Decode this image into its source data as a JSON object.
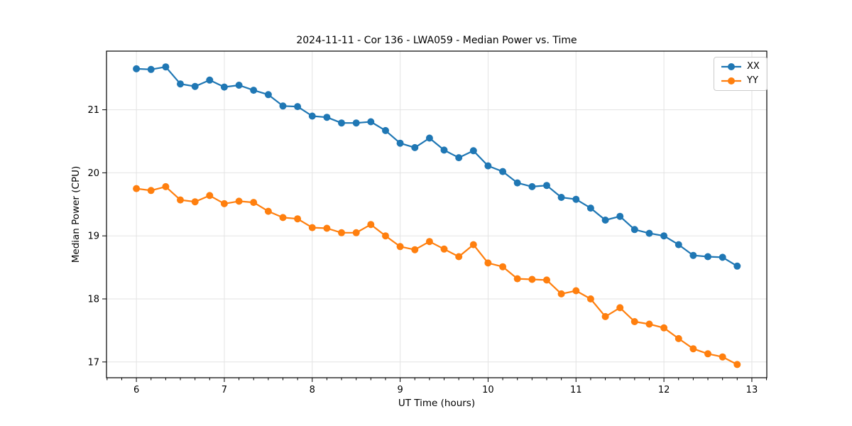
{
  "chart_data": {
    "type": "line",
    "title": "2024-11-11 - Cor 136 - LWA059 - Median Power vs. Time",
    "xlabel": "UT Time (hours)",
    "ylabel": "Median Power (CPU)",
    "xlim": [
      5.66,
      13.17
    ],
    "ylim": [
      16.75,
      21.93
    ],
    "x_ticks": [
      6,
      7,
      8,
      9,
      10,
      11,
      12,
      13
    ],
    "y_ticks": [
      17,
      18,
      19,
      20,
      21
    ],
    "x_minor_per_unit": 6,
    "grid": true,
    "legend_position": "upper right",
    "colors": {
      "XX": "#1f77b4",
      "YY": "#ff7f0e",
      "grid": "#e3e3e3",
      "spine": "#000000",
      "text": "#000000",
      "background": "#ffffff"
    },
    "x": [
      6.0,
      6.1667,
      6.3333,
      6.5,
      6.6667,
      6.8333,
      7.0,
      7.1667,
      7.3333,
      7.5,
      7.6667,
      7.8333,
      8.0,
      8.1667,
      8.3333,
      8.5,
      8.6667,
      8.8333,
      9.0,
      9.1667,
      9.3333,
      9.5,
      9.6667,
      9.8333,
      10.0,
      10.1667,
      10.3333,
      10.5,
      10.6667,
      10.8333,
      11.0,
      11.1667,
      11.3333,
      11.5,
      11.6667,
      11.8333,
      12.0,
      12.1667,
      12.3333,
      12.5,
      12.6667,
      12.8333
    ],
    "series": [
      {
        "name": "XX",
        "values": [
          21.65,
          21.64,
          21.68,
          21.41,
          21.37,
          21.47,
          21.36,
          21.39,
          21.31,
          21.24,
          21.06,
          21.05,
          20.9,
          20.88,
          20.79,
          20.79,
          20.81,
          20.67,
          20.47,
          20.4,
          20.55,
          20.36,
          20.24,
          20.35,
          20.11,
          20.02,
          19.84,
          19.78,
          19.8,
          19.61,
          19.58,
          19.44,
          19.25,
          19.31,
          19.1,
          19.04,
          19.0,
          18.86,
          18.69,
          18.67,
          18.66,
          18.52
        ]
      },
      {
        "name": "YY",
        "values": [
          19.75,
          19.72,
          19.78,
          19.57,
          19.54,
          19.64,
          19.51,
          19.55,
          19.53,
          19.39,
          19.29,
          19.27,
          19.13,
          19.12,
          19.05,
          19.05,
          19.18,
          19.0,
          18.83,
          18.78,
          18.91,
          18.79,
          18.67,
          18.86,
          18.57,
          18.51,
          18.32,
          18.31,
          18.3,
          18.08,
          18.13,
          18.0,
          17.72,
          17.86,
          17.64,
          17.6,
          17.54,
          17.37,
          17.21,
          17.13,
          17.08,
          16.96
        ]
      }
    ]
  }
}
